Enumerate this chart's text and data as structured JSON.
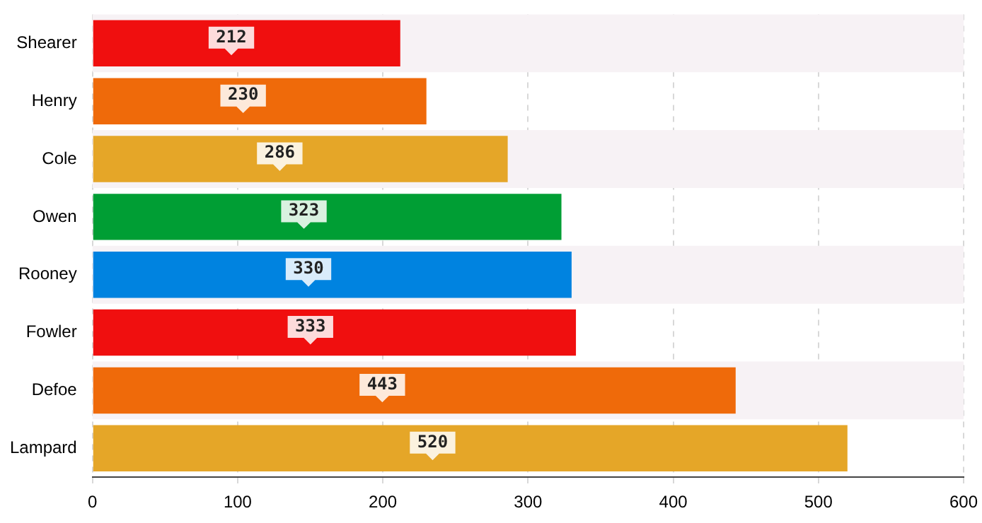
{
  "chart_data": {
    "type": "bar",
    "orientation": "horizontal",
    "categories": [
      "Shearer",
      "Henry",
      "Cole",
      "Owen",
      "Rooney",
      "Fowler",
      "Defoe",
      "Lampard"
    ],
    "values": [
      212,
      230,
      286,
      323,
      330,
      333,
      443,
      520
    ],
    "colors": [
      "#f00f0f",
      "#ef6a0a",
      "#e5a628",
      "#009e34",
      "#0083e0",
      "#f00f0f",
      "#ef6a0a",
      "#e5a628"
    ],
    "xlim": [
      0,
      600
    ],
    "xticks": [
      0,
      100,
      200,
      300,
      400,
      500,
      600
    ],
    "grid": "x",
    "data_labels": true,
    "legend": false
  }
}
